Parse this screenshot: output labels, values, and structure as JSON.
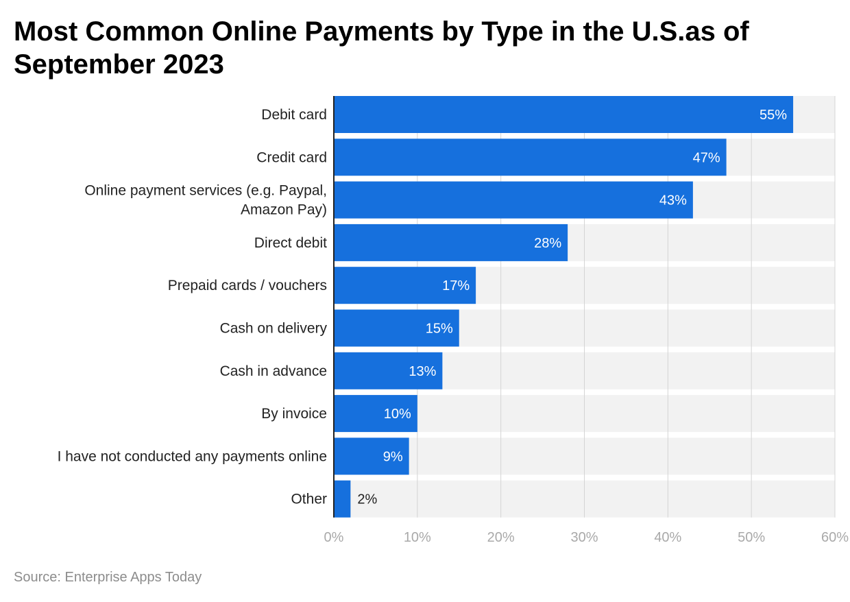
{
  "title": "Most Common Online Payments by Type in the U.S.as of September 2023",
  "source": "Source: Enterprise Apps Today",
  "colors": {
    "bar": "#1670dd",
    "band": "#f2f2f2",
    "grid": "#d4d4d4",
    "axis": "#222222",
    "tick": "#a9a9a9"
  },
  "chart_data": {
    "type": "bar",
    "orientation": "horizontal",
    "categories": [
      [
        "Debit card"
      ],
      [
        "Credit card"
      ],
      [
        "Online payment services (e.g. Paypal,",
        "Amazon Pay)"
      ],
      [
        "Direct debit"
      ],
      [
        "Prepaid cards / vouchers"
      ],
      [
        "Cash on delivery"
      ],
      [
        "Cash in advance"
      ],
      [
        "By invoice"
      ],
      [
        "I have not conducted any payments online"
      ],
      [
        "Other"
      ]
    ],
    "values": [
      55,
      47,
      43,
      28,
      17,
      15,
      13,
      10,
      9,
      2
    ],
    "value_labels": [
      "55%",
      "47%",
      "43%",
      "28%",
      "17%",
      "15%",
      "13%",
      "10%",
      "9%",
      "2%"
    ],
    "xlim": [
      0,
      60
    ],
    "xticks": [
      0,
      10,
      20,
      30,
      40,
      50,
      60
    ],
    "xtick_labels": [
      "0%",
      "10%",
      "20%",
      "30%",
      "40%",
      "50%",
      "60%"
    ],
    "grid": true
  }
}
